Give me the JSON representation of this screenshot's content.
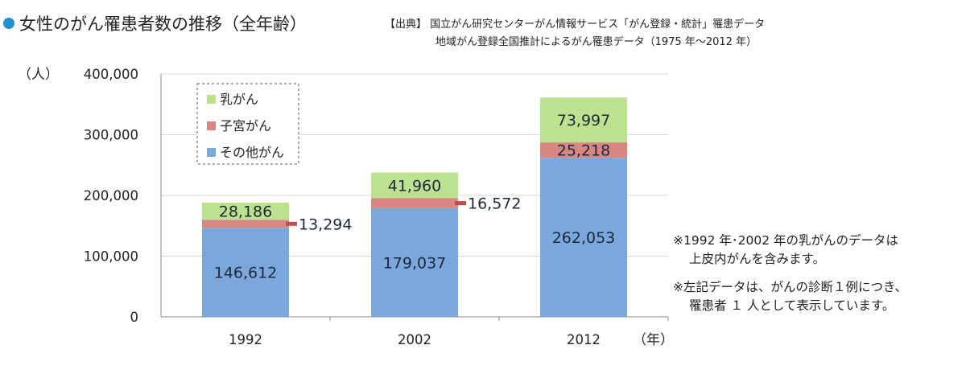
{
  "header": {
    "title": "女性のがん罹患者数の推移（全年齢）",
    "source_line1": "【出典】 国立がん研究センターがん情報サービス「がん登録・統計」罹患データ",
    "source_line2": "地域がん登録全国推計によるがん罹患データ（1975 年～2012 年）"
  },
  "notes": {
    "note1_line1": "※1992 年･2002 年の乳がんのデータは",
    "note1_line2": "上皮内がんを含みます。",
    "note2_line1": "※左記データは、がんの診断１例につき、",
    "note2_line2": "罹患者 １ 人として表示しています。"
  },
  "chart_data": {
    "type": "bar",
    "stacked": true,
    "categories": [
      "1992",
      "2002",
      "2012"
    ],
    "series": [
      {
        "name": "その他がん",
        "values": [
          146612,
          179037,
          262053
        ],
        "labels": [
          "146,612",
          "179,037",
          "262,053"
        ],
        "color": "#7ba7dd"
      },
      {
        "name": "子宮がん",
        "values": [
          13294,
          16572,
          25218
        ],
        "labels": [
          "13,294",
          "16,572",
          "25,218"
        ],
        "color": "#d98582"
      },
      {
        "name": "乳がん",
        "values": [
          28186,
          41960,
          73997
        ],
        "labels": [
          "28,186",
          "41,960",
          "73,997"
        ],
        "color": "#bde28f"
      }
    ],
    "legend_order": [
      "乳がん",
      "子宮がん",
      "その他がん"
    ],
    "ylim": [
      0,
      400000
    ],
    "yticks": [
      0,
      100000,
      200000,
      300000,
      400000
    ],
    "ytick_labels": [
      "0",
      "100,000",
      "200,000",
      "300,000",
      "400,000"
    ],
    "ylabel": "（人）",
    "xlabel": "（年）",
    "grid": true,
    "legend_position": "top-left"
  }
}
